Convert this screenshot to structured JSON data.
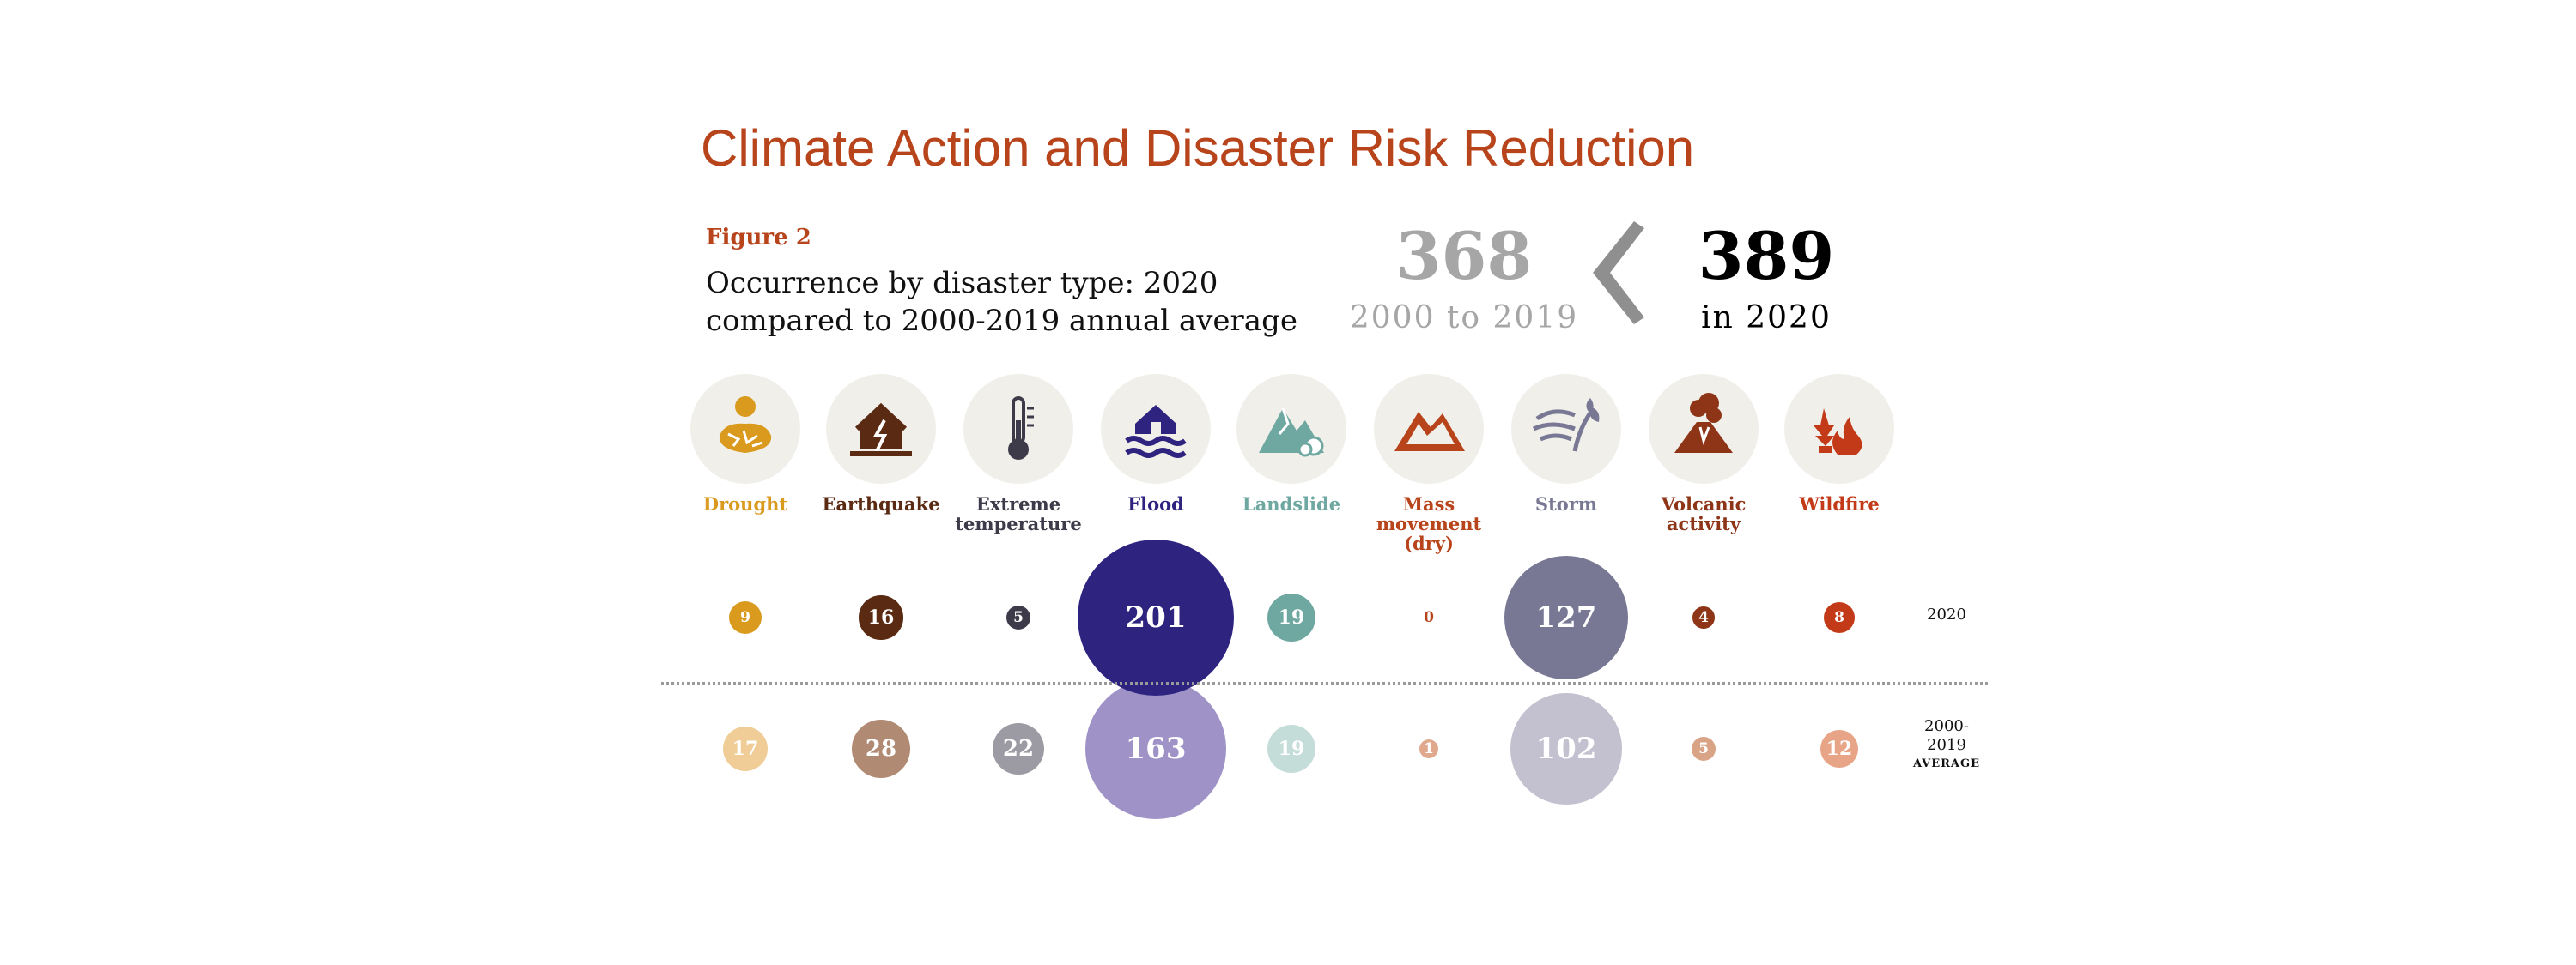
{
  "title": "Climate Action and Disaster Risk Reduction",
  "figure_label": "Figure 2",
  "subtitle_line1": "Occurrence by disaster type: 2020",
  "subtitle_line2": "compared to 2000-2019 annual average",
  "totals": {
    "previous_value": "368",
    "previous_label": "2000 to 2019",
    "current_value": "389",
    "current_label": "in 2020",
    "chevron_color": "#8f8f8f"
  },
  "row_labels": {
    "row_2020": "2020",
    "avg_line1": "2000-",
    "avg_line2": "2019",
    "avg_line3": "AVERAGE"
  },
  "categories": [
    {
      "label_lines": [
        "Drought"
      ],
      "icon": "drought-icon",
      "color": "#d99a1e",
      "color_avg": "#f0cd96",
      "label_color": "#d99a1e",
      "v2020": 9,
      "vavg": 17
    },
    {
      "label_lines": [
        "Earthquake"
      ],
      "icon": "earthquake-icon",
      "color": "#5a2a12",
      "color_avg": "#b08a72",
      "label_color": "#5a2a12",
      "v2020": 16,
      "vavg": 28
    },
    {
      "label_lines": [
        "Extreme",
        "temperature"
      ],
      "icon": "thermometer-icon",
      "color": "#3d3b4a",
      "color_avg": "#9c9aa2",
      "label_color": "#3d3b4a",
      "v2020": 5,
      "vavg": 22
    },
    {
      "label_lines": [
        "Flood"
      ],
      "icon": "flood-icon",
      "color": "#2e2480",
      "color_avg": "#9e92c7",
      "label_color": "#2e2480",
      "v2020": 201,
      "vavg": 163
    },
    {
      "label_lines": [
        "Landslide"
      ],
      "icon": "landslide-icon",
      "color": "#6fa7a1",
      "color_avg": "#c5ddd9",
      "label_color": "#6fa7a1",
      "v2020": 19,
      "vavg": 19
    },
    {
      "label_lines": [
        "Mass",
        "movement",
        "(dry)"
      ],
      "icon": "mass-movement-icon",
      "color": "#b8441b",
      "color_avg": "#e0a98e",
      "label_color": "#b8441b",
      "v2020": 0,
      "vavg": 1
    },
    {
      "label_lines": [
        "Storm"
      ],
      "icon": "storm-icon",
      "color": "#787894",
      "color_avg": "#c3c1cf",
      "label_color": "#787894",
      "v2020": 127,
      "vavg": 102
    },
    {
      "label_lines": [
        "Volcanic",
        "activity"
      ],
      "icon": "volcano-icon",
      "color": "#8e3517",
      "color_avg": "#d9a486",
      "label_color": "#8e3517",
      "v2020": 4,
      "vavg": 5
    },
    {
      "label_lines": [
        "Wildfire"
      ],
      "icon": "wildfire-icon",
      "color": "#c23a17",
      "color_avg": "#e8a487",
      "label_color": "#c23a17",
      "v2020": 8,
      "vavg": 12
    }
  ],
  "chart_data": {
    "type": "bubble",
    "title": "Occurrence by disaster type: 2020 compared to 2000-2019 annual average",
    "categories": [
      "Drought",
      "Earthquake",
      "Extreme temperature",
      "Flood",
      "Landslide",
      "Mass movement (dry)",
      "Storm",
      "Volcanic activity",
      "Wildfire"
    ],
    "series": [
      {
        "name": "2020",
        "values": [
          9,
          16,
          5,
          201,
          19,
          0,
          127,
          4,
          8
        ]
      },
      {
        "name": "2000-2019 AVERAGE",
        "values": [
          17,
          28,
          22,
          163,
          19,
          1,
          102,
          5,
          12
        ]
      }
    ]
  }
}
